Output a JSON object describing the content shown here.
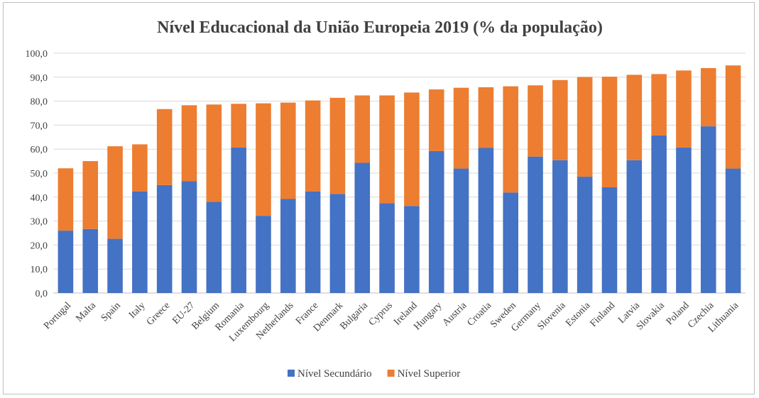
{
  "chart_data": {
    "type": "bar",
    "stacked": true,
    "title": "Nível Educacional da União Europeia 2019 (% da população)",
    "xlabel": "",
    "ylabel": "",
    "ylim": [
      0,
      100
    ],
    "y_ticks": [
      "0,0",
      "10,0",
      "20,0",
      "30,0",
      "40,0",
      "50,0",
      "60,0",
      "70,0",
      "80,0",
      "90,0",
      "100,0"
    ],
    "grid": true,
    "legend_position": "bottom",
    "categories": [
      "Portugal",
      "Malta",
      "Spain",
      "Italy",
      "Greece",
      "EU-27",
      "Belgium",
      "Romania",
      "Luxembourg",
      "Netherlands",
      "France",
      "Denmark",
      "Bulgaria",
      "Cyprus",
      "Ireland",
      "Hungary",
      "Austria",
      "Croatia",
      "Sweden",
      "Germany",
      "Slovenia",
      "Estonia",
      "Finland",
      "Latvia",
      "Slovakia",
      "Poland",
      "Czechia",
      "Lithuania"
    ],
    "series": [
      {
        "name": "Nível Secundário",
        "color": "#4472c4",
        "values": [
          26.0,
          26.7,
          22.6,
          42.4,
          45.0,
          46.7,
          38.0,
          60.7,
          32.2,
          39.2,
          42.4,
          41.3,
          54.3,
          37.4,
          36.3,
          59.2,
          51.9,
          60.5,
          41.9,
          56.9,
          55.4,
          48.5,
          44.1,
          55.4,
          65.7,
          60.7,
          69.5,
          51.9
        ]
      },
      {
        "name": "Nível Superior",
        "color": "#ed7d31",
        "values": [
          26.0,
          28.3,
          38.6,
          19.6,
          31.7,
          31.6,
          40.6,
          18.2,
          46.9,
          40.2,
          37.9,
          40.1,
          28.1,
          45.0,
          47.3,
          25.7,
          33.7,
          25.3,
          44.3,
          29.7,
          33.4,
          41.6,
          46.1,
          35.6,
          25.6,
          32.1,
          24.3,
          43.0
        ]
      }
    ]
  }
}
